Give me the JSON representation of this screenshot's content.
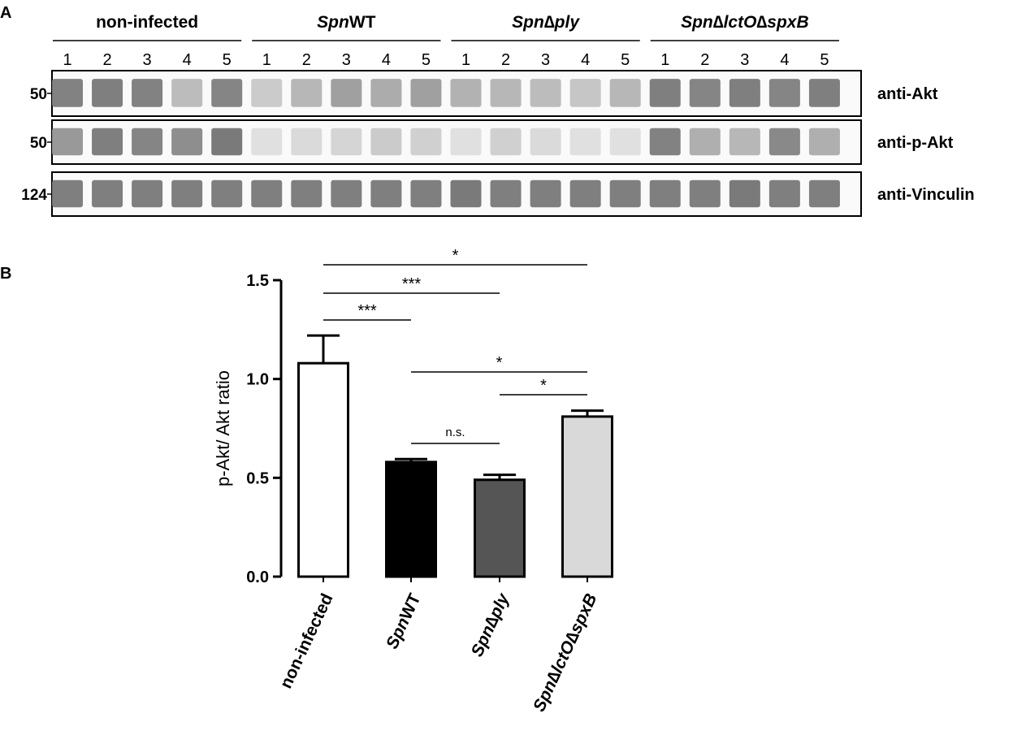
{
  "panel_a": {
    "letter": "A",
    "groups": [
      {
        "name_italic": "",
        "name_rest": "non-infected"
      },
      {
        "name_italic": "Spn",
        "name_rest": "WT"
      },
      {
        "name_italic": "Spn∆ply",
        "name_rest": ""
      },
      {
        "name_italic": "Spn∆lctO∆spxB",
        "name_rest": ""
      }
    ],
    "lanes": [
      "1",
      "2",
      "3",
      "4",
      "5"
    ],
    "blots": [
      {
        "mw": "50",
        "label": "anti-Akt",
        "intensities": [
          0.7,
          0.72,
          0.7,
          0.32,
          0.68,
          0.22,
          0.35,
          0.5,
          0.42,
          0.5,
          0.38,
          0.35,
          0.32,
          0.25,
          0.35,
          0.72,
          0.68,
          0.72,
          0.68,
          0.72
        ]
      },
      {
        "mw": "50",
        "label": "anti-p-Akt",
        "intensities": [
          0.55,
          0.72,
          0.68,
          0.62,
          0.75,
          0.08,
          0.12,
          0.15,
          0.22,
          0.18,
          0.08,
          0.18,
          0.12,
          0.08,
          0.08,
          0.7,
          0.4,
          0.35,
          0.65,
          0.4
        ]
      },
      {
        "mw": "124",
        "label": "anti-Vinculin",
        "intensities": [
          0.72,
          0.72,
          0.72,
          0.72,
          0.72,
          0.72,
          0.72,
          0.72,
          0.72,
          0.72,
          0.75,
          0.72,
          0.72,
          0.72,
          0.72,
          0.72,
          0.72,
          0.75,
          0.72,
          0.72
        ]
      }
    ]
  },
  "chart_data": {
    "type": "bar",
    "panel_letter": "B",
    "categories": [
      {
        "italic": "",
        "rest": "non-infected"
      },
      {
        "italic": "Spn",
        "rest": "WT"
      },
      {
        "italic": "Spn∆ply",
        "rest": ""
      },
      {
        "italic": "Spn∆lctO∆spxB",
        "rest": ""
      }
    ],
    "values": [
      1.08,
      0.58,
      0.49,
      0.81
    ],
    "errors": [
      0.14,
      0.015,
      0.025,
      0.03
    ],
    "colors": [
      "#ffffff",
      "#000000",
      "#555555",
      "#d9d9d9"
    ],
    "ylabel": "p-Akt/ Akt ratio",
    "ylim": [
      0,
      1.5
    ],
    "yticks": [
      "0.0",
      "0.5",
      "1.0",
      "1.5"
    ],
    "significance": [
      {
        "from": 0,
        "to": 3,
        "label": "*"
      },
      {
        "from": 0,
        "to": 2,
        "label": "***"
      },
      {
        "from": 0,
        "to": 1,
        "label": "***"
      },
      {
        "from": 1,
        "to": 3,
        "label": "*"
      },
      {
        "from": 2,
        "to": 3,
        "label": "*"
      },
      {
        "from": 1,
        "to": 2,
        "label": "n.s."
      }
    ]
  }
}
